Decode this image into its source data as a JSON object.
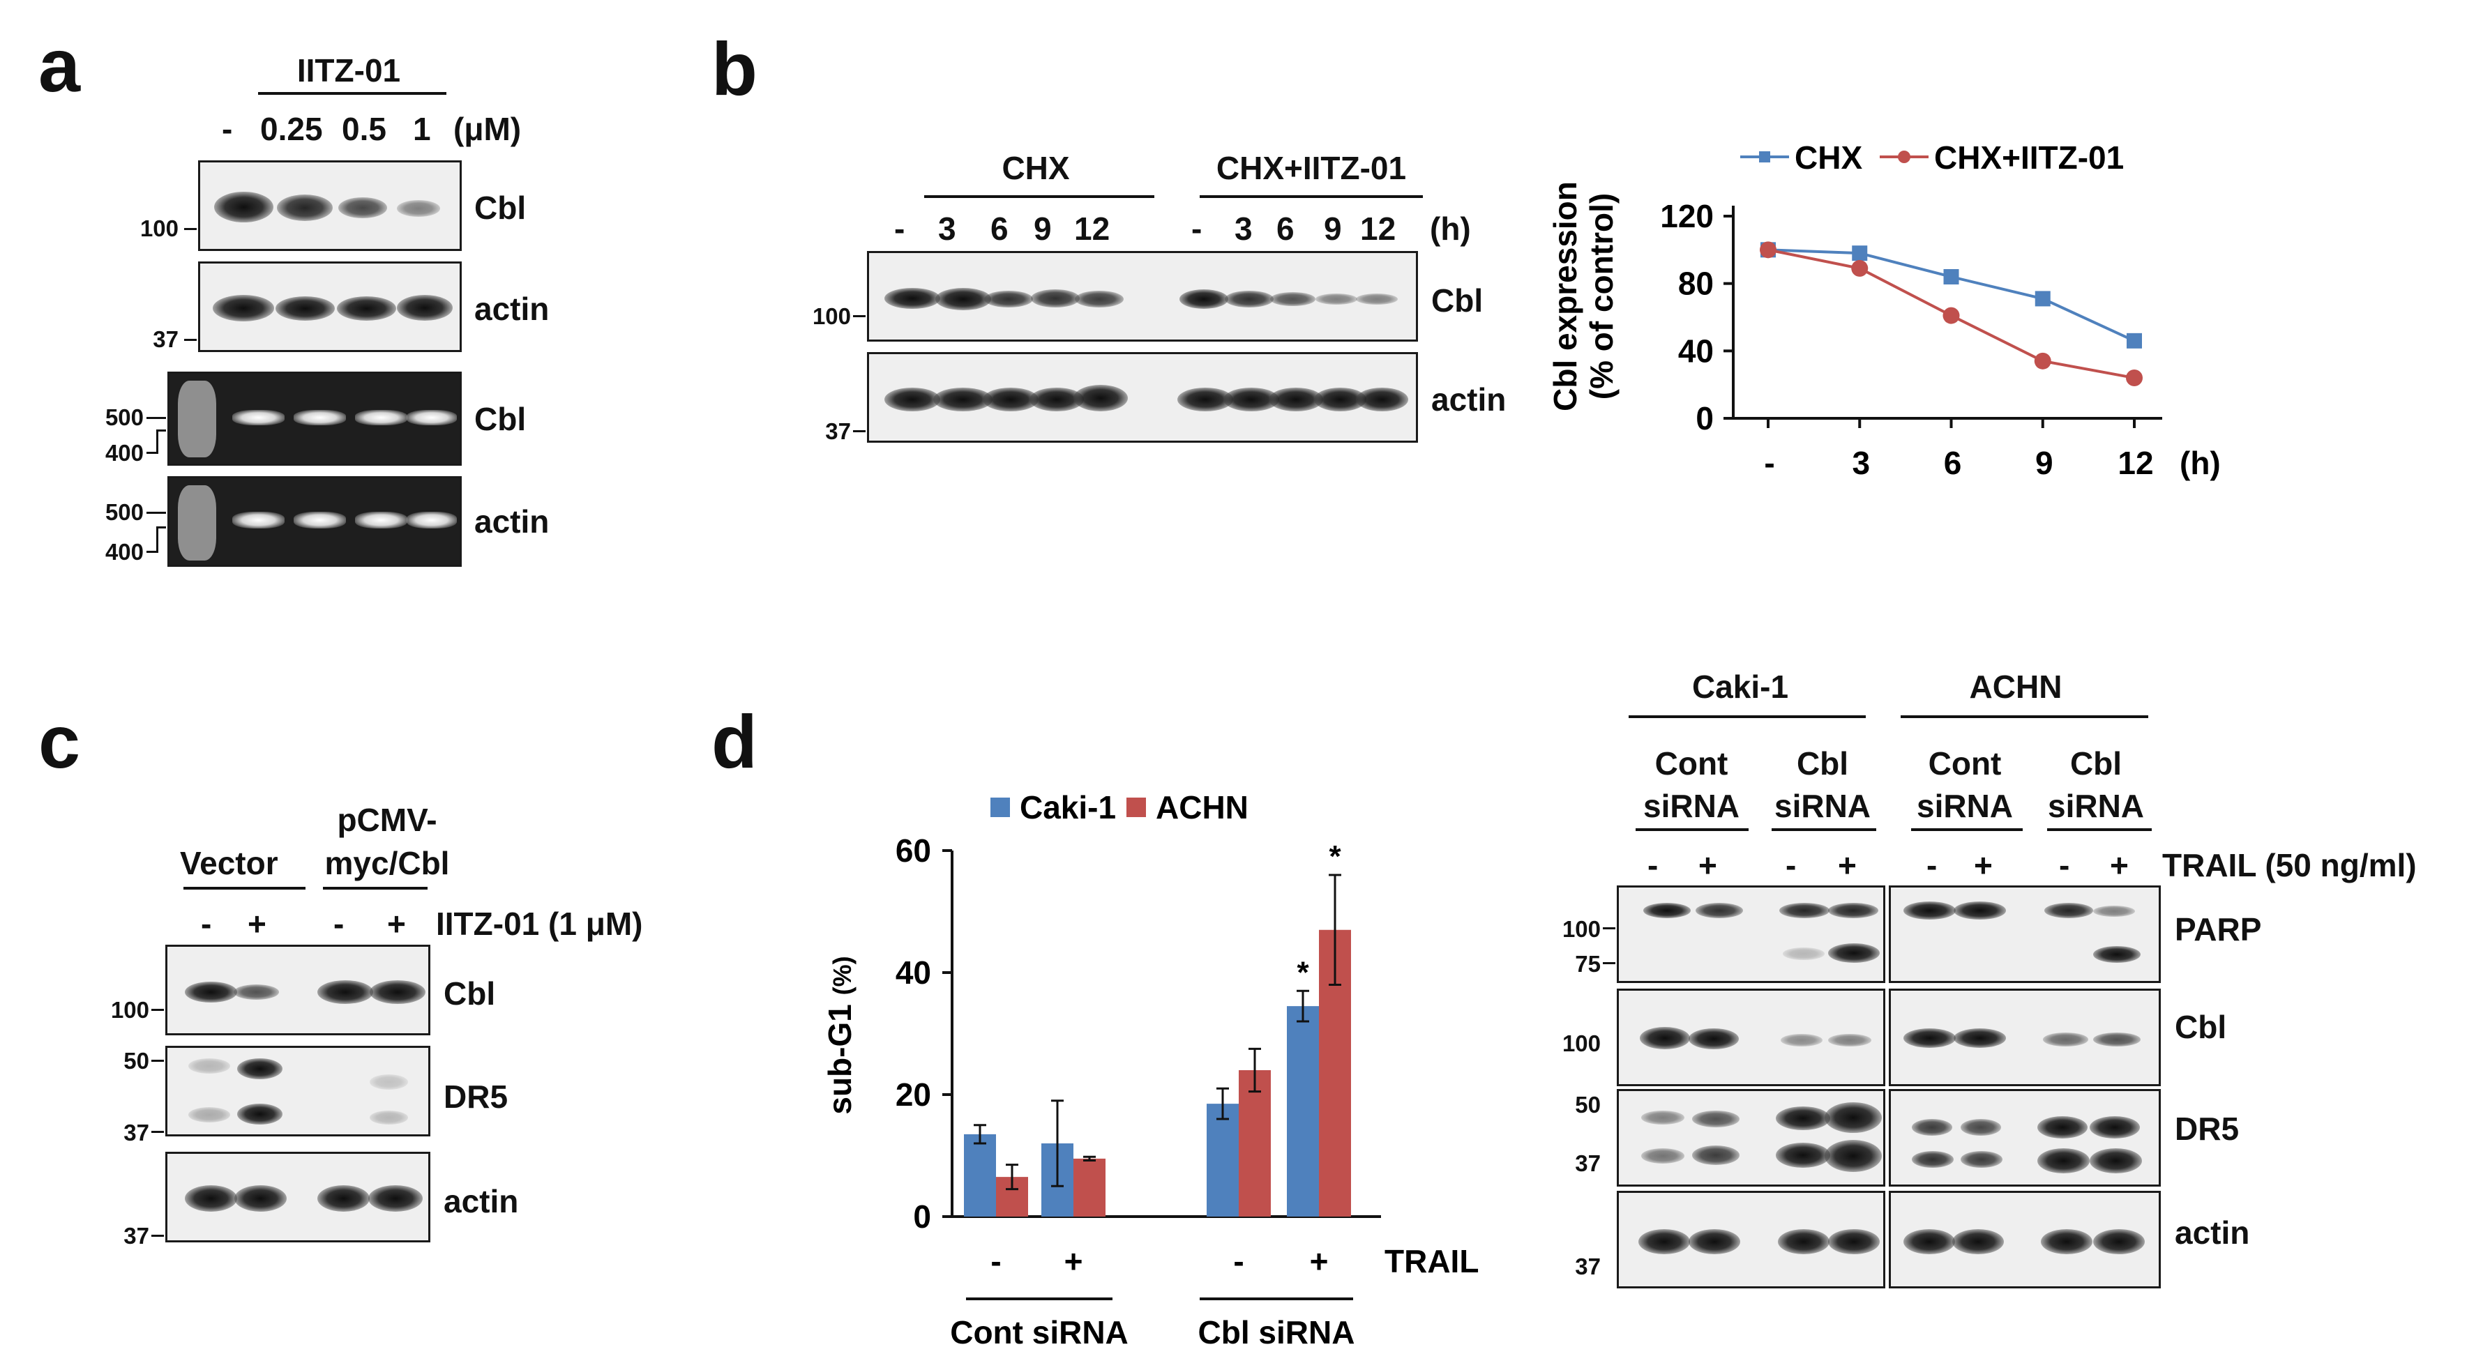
{
  "panel_labels": {
    "a": "a",
    "b": "b",
    "c": "c",
    "d": "d"
  },
  "panel_a": {
    "treatment": "IITZ-01",
    "doses": [
      "-",
      "0.25",
      "0.5",
      "1",
      "(μM)"
    ],
    "rows": [
      {
        "label": "Cbl",
        "mw": [
          "100"
        ]
      },
      {
        "label": "actin",
        "mw": [
          "37"
        ]
      },
      {
        "label": "Cbl",
        "mw": [
          "500",
          "400"
        ]
      },
      {
        "label": "actin",
        "mw": [
          "500",
          "400"
        ]
      }
    ]
  },
  "panel_b": {
    "groups": [
      "CHX",
      "CHX+IITZ-01"
    ],
    "times": [
      "-",
      "3",
      "6",
      "9",
      "12",
      "-",
      "3",
      "6",
      "9",
      "12",
      "(h)"
    ],
    "rows": [
      {
        "label": "Cbl",
        "mw": "100"
      },
      {
        "label": "actin",
        "mw": "37"
      }
    ]
  },
  "chart_data": {
    "type": "line",
    "x": [
      "-",
      "3",
      "6",
      "9",
      "12"
    ],
    "xunit": "(h)",
    "series": [
      {
        "name": "CHX",
        "color": "#4f81bd",
        "values": [
          100,
          98,
          84,
          71,
          46
        ]
      },
      {
        "name": "CHX+IITZ-01",
        "color": "#c0504d",
        "values": [
          100,
          89,
          61,
          34,
          24
        ]
      }
    ],
    "ylabel_line1": "Cbl expression",
    "ylabel_line2": "(% of control)",
    "yticks": [
      "0",
      "40",
      "80",
      "120"
    ],
    "ylim": [
      0,
      120
    ]
  },
  "chart_data_d": {
    "type": "bar",
    "ylabel": "sub-G1",
    "ylabel_unit": "(%)",
    "yticks": [
      "0",
      "20",
      "40",
      "60"
    ],
    "ylim": [
      0,
      60
    ],
    "legend": [
      {
        "name": "Caki-1",
        "color": "#4f81bd"
      },
      {
        "name": "ACHN",
        "color": "#c0504d"
      }
    ],
    "categories": [
      "-",
      "+",
      "-",
      "+"
    ],
    "trail_label": "TRAIL",
    "groups": [
      "Cont siRNA",
      "Cbl siRNA"
    ],
    "series": [
      {
        "name": "Caki-1",
        "values": [
          13.5,
          12,
          18.5,
          34.5
        ],
        "errors": [
          1.5,
          7,
          2.5,
          2.5
        ]
      },
      {
        "name": "ACHN",
        "values": [
          6.5,
          9.5,
          24,
          47
        ],
        "errors": [
          2,
          0.3,
          3.5,
          9
        ]
      }
    ],
    "significance": [
      "*",
      "*"
    ]
  },
  "panel_c": {
    "groups": [
      "Vector",
      "pCMV-",
      "myc/Cbl"
    ],
    "lanes": [
      "-",
      "+",
      "-",
      "+"
    ],
    "treatment": "IITZ-01 (1 μM)",
    "rows": [
      {
        "label": "Cbl",
        "mw": [
          "100"
        ]
      },
      {
        "label": "DR5",
        "mw": [
          "50",
          "37"
        ]
      },
      {
        "label": "actin",
        "mw": [
          "37"
        ]
      }
    ]
  },
  "panel_d_blot": {
    "cells": [
      "Caki-1",
      "ACHN"
    ],
    "sirna": [
      [
        "Cont",
        "siRNA"
      ],
      [
        "Cbl",
        "siRNA"
      ],
      [
        "Cont",
        "siRNA"
      ],
      [
        "Cbl",
        "siRNA"
      ]
    ],
    "lanes": [
      "-",
      "+",
      "-",
      "+",
      "-",
      "+",
      "-",
      "+"
    ],
    "trail": "TRAIL (50 ng/ml)",
    "rows": [
      {
        "label": "PARP",
        "mw": [
          "100",
          "75"
        ]
      },
      {
        "label": "Cbl",
        "mw": [
          "100"
        ]
      },
      {
        "label": "DR5",
        "mw": [
          "50",
          "37"
        ]
      },
      {
        "label": "actin",
        "mw": [
          "37"
        ]
      }
    ]
  }
}
